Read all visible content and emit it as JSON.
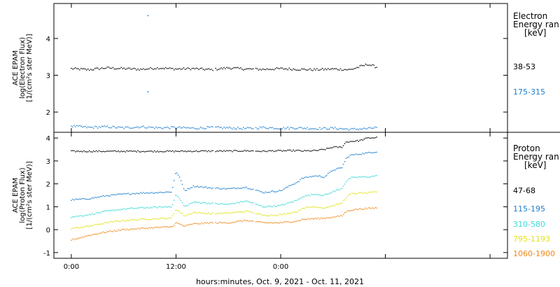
{
  "chart_data": [
    {
      "type": "scatter",
      "panel": "electron",
      "ylabel_lines": [
        "ACE EPAM",
        "log(Electron Flux)",
        "[1/(cm²s ster MeV)]"
      ],
      "ylim": [
        1.45,
        4.95
      ],
      "yticks": [
        2,
        3,
        4
      ],
      "legend_title_lines": [
        "Electron",
        "Energy ran",
        "[keV]"
      ],
      "series": [
        {
          "name": "38-53",
          "color": "#000000",
          "x": [
            0,
            2,
            4,
            6,
            8,
            10,
            12,
            14,
            16,
            18,
            20,
            22,
            24,
            26,
            28,
            30,
            32,
            34,
            35
          ],
          "y": [
            3.18,
            3.15,
            3.2,
            3.18,
            3.16,
            3.2,
            3.17,
            3.18,
            3.15,
            3.2,
            3.17,
            3.16,
            3.18,
            3.16,
            3.15,
            3.17,
            3.15,
            3.3,
            3.22
          ]
        },
        {
          "name": "175-315",
          "color": "#1f7fd0",
          "x": [
            0,
            2,
            4,
            6,
            8,
            10,
            12,
            14,
            16,
            18,
            20,
            22,
            24,
            26,
            28,
            30,
            32,
            34,
            35
          ],
          "y": [
            1.62,
            1.58,
            1.6,
            1.57,
            1.6,
            1.57,
            1.58,
            1.56,
            1.58,
            1.57,
            1.55,
            1.58,
            1.56,
            1.57,
            1.55,
            1.56,
            1.53,
            1.55,
            1.58
          ]
        }
      ],
      "outliers": [
        {
          "x": 8.8,
          "y": 4.62,
          "color": "#1f7fd0"
        },
        {
          "x": 8.8,
          "y": 2.55,
          "color": "#1f7fd0"
        }
      ]
    },
    {
      "type": "scatter",
      "panel": "proton",
      "ylabel_lines": [
        "ACE EPAM",
        "log(Proton Flux)",
        "[1/(cm²s ster MeV)]"
      ],
      "ylim": [
        -1.25,
        4.25
      ],
      "yticks": [
        -1,
        0,
        1,
        2,
        3,
        4
      ],
      "legend_title_lines": [
        "Proton",
        "Energy ran",
        "[keV]"
      ],
      "series": [
        {
          "name": "47-68",
          "color": "#000000",
          "x": [
            0,
            4,
            8,
            12,
            16,
            18,
            20,
            20.5,
            22,
            23,
            24,
            26,
            26.5,
            28,
            29,
            30,
            31,
            31.5,
            32,
            33,
            34,
            35
          ],
          "y": [
            3.42,
            3.42,
            3.42,
            3.42,
            3.43,
            3.43,
            3.44,
            3.44,
            3.42,
            3.44,
            3.44,
            3.45,
            3.43,
            3.45,
            3.5,
            3.6,
            3.6,
            3.82,
            3.85,
            3.88,
            4.0,
            4.02
          ]
        },
        {
          "name": "115-195",
          "color": "#1f7fd0",
          "x": [
            0,
            2,
            4,
            6,
            8,
            10,
            11.5,
            12,
            12.5,
            13,
            14,
            16,
            18,
            20,
            20.5,
            22,
            24,
            26,
            26.5,
            28,
            29,
            30,
            31,
            31.5,
            32,
            33,
            34,
            35
          ],
          "y": [
            1.3,
            1.35,
            1.48,
            1.55,
            1.6,
            1.62,
            1.65,
            2.55,
            2.2,
            1.7,
            1.9,
            1.82,
            1.78,
            1.85,
            1.8,
            1.62,
            1.7,
            2.1,
            2.25,
            2.35,
            2.3,
            2.6,
            2.7,
            3.1,
            3.25,
            3.3,
            3.35,
            3.4
          ]
        },
        {
          "name": "310-580",
          "color": "#3fd9d9",
          "x": [
            0,
            2,
            4,
            6,
            8,
            10,
            11.5,
            12,
            12.5,
            13,
            14,
            16,
            18,
            20,
            20.5,
            22,
            24,
            26,
            26.5,
            28,
            29,
            30,
            31,
            31.5,
            32,
            33,
            34,
            35
          ],
          "y": [
            0.55,
            0.65,
            0.8,
            0.9,
            0.95,
            0.98,
            1.0,
            1.55,
            1.3,
            1.0,
            1.2,
            1.15,
            1.1,
            1.25,
            1.2,
            1.0,
            1.05,
            1.3,
            1.45,
            1.55,
            1.5,
            1.65,
            1.8,
            2.1,
            2.25,
            2.3,
            2.3,
            2.35
          ]
        },
        {
          "name": "795-1193",
          "color": "#e2e21a",
          "x": [
            0,
            2,
            4,
            6,
            8,
            10,
            11.5,
            12,
            13,
            14,
            16,
            18,
            20,
            20.5,
            22,
            24,
            26,
            26.5,
            28,
            29,
            30,
            31,
            31.5,
            32,
            33,
            34,
            35
          ],
          "y": [
            0.05,
            0.15,
            0.3,
            0.4,
            0.45,
            0.48,
            0.5,
            0.9,
            0.6,
            0.75,
            0.7,
            0.72,
            0.8,
            0.78,
            0.62,
            0.65,
            0.8,
            0.95,
            1.0,
            0.95,
            1.05,
            1.15,
            1.4,
            1.55,
            1.6,
            1.6,
            1.65
          ]
        },
        {
          "name": "1060-1900",
          "color": "#f08a1a",
          "x": [
            0,
            2,
            4,
            6,
            8,
            10,
            11.5,
            12,
            13,
            14,
            16,
            18,
            20,
            20.5,
            22,
            24,
            26,
            26.5,
            28,
            29,
            30,
            31,
            31.5,
            32,
            33,
            34,
            35
          ],
          "y": [
            -0.45,
            -0.25,
            -0.1,
            0.0,
            0.05,
            0.1,
            0.12,
            0.3,
            0.15,
            0.25,
            0.3,
            0.3,
            0.4,
            0.38,
            0.3,
            0.3,
            0.38,
            0.45,
            0.48,
            0.5,
            0.55,
            0.6,
            0.78,
            0.85,
            0.9,
            0.92,
            0.95
          ]
        }
      ]
    }
  ],
  "xaxis": {
    "xlim": [
      -2,
      50
    ],
    "ticks": [
      0,
      12,
      24,
      36,
      48
    ],
    "labeled_ticks": [
      {
        "x": 0,
        "label": "0:00"
      },
      {
        "x": 12,
        "label": "12:00"
      },
      {
        "x": 24,
        "label": "0:00"
      }
    ],
    "xlabel": "hours:minutes, Oct.  9, 2021 - Oct. 11, 2021"
  }
}
